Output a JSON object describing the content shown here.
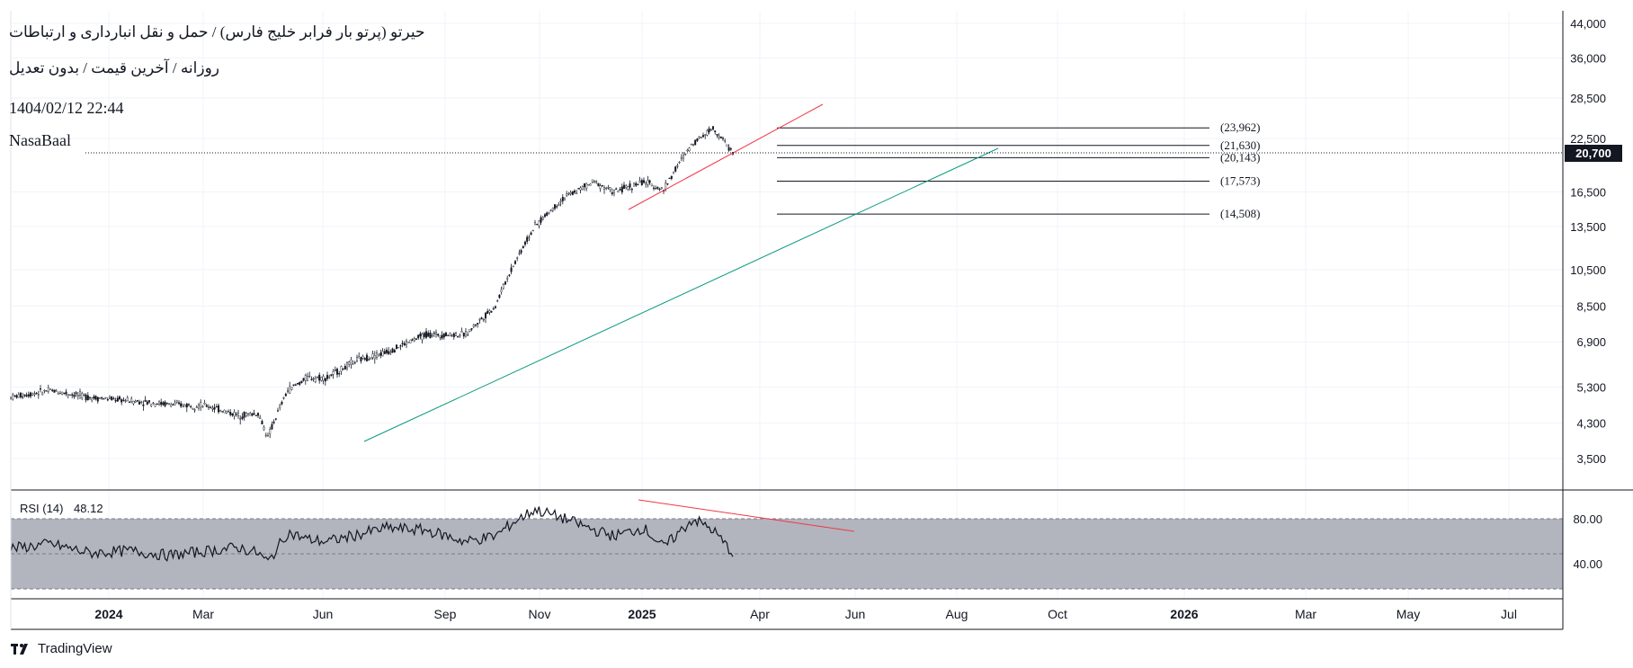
{
  "header": {
    "title": "حیرتو (پرتو بار فرابر خلیج فارس) / حمل و نقل انبارداری و ارتباطات",
    "subtitle": "روزانه / آخرین قیمت / بدون تعدیل",
    "datetime": "1404/02/12 22:44",
    "author": "NasaBaal"
  },
  "brand": {
    "name": "TradingView",
    "icon": "tradingview-logo-icon"
  },
  "colors": {
    "trend_upper": "#f23645",
    "trend_lower": "#089981",
    "candle": "#131722",
    "rsi_band": "#b2b5be"
  },
  "price_axis": {
    "scale": "log",
    "ticks": [
      "44,000",
      "36,000",
      "28,500",
      "22,500",
      "16,500",
      "13,500",
      "10,500",
      "8,500",
      "6,900",
      "5,300",
      "4,300",
      "3,500"
    ],
    "last_price": "20,700"
  },
  "time_axis": {
    "ticks": [
      {
        "label": "2024",
        "bold": true
      },
      {
        "label": "Mar",
        "bold": false
      },
      {
        "label": "Jun",
        "bold": false
      },
      {
        "label": "Sep",
        "bold": false
      },
      {
        "label": "Nov",
        "bold": false
      },
      {
        "label": "2025",
        "bold": true
      },
      {
        "label": "Apr",
        "bold": false
      },
      {
        "label": "Jun",
        "bold": false
      },
      {
        "label": "Aug",
        "bold": false
      },
      {
        "label": "Oct",
        "bold": false
      },
      {
        "label": "2026",
        "bold": true
      },
      {
        "label": "Mar",
        "bold": false
      },
      {
        "label": "May",
        "bold": false
      },
      {
        "label": "Jul",
        "bold": false
      }
    ]
  },
  "rsi": {
    "label": "RSI (14)",
    "value": "48.12",
    "ticks": [
      "80.00",
      "40.00"
    ]
  },
  "chart_data": {
    "type": "candlestick",
    "x_start": "2023-11",
    "x_end": "2025-05",
    "price_path": [
      [
        0,
        5000
      ],
      [
        20,
        5200
      ],
      [
        40,
        5000
      ],
      [
        60,
        4900
      ],
      [
        80,
        4800
      ],
      [
        100,
        4750
      ],
      [
        115,
        4500
      ],
      [
        125,
        4550
      ],
      [
        130,
        3950
      ],
      [
        140,
        5200
      ],
      [
        150,
        5600
      ],
      [
        160,
        5600
      ],
      [
        175,
        6200
      ],
      [
        190,
        6500
      ],
      [
        210,
        7200
      ],
      [
        230,
        7200
      ],
      [
        245,
        8500
      ],
      [
        255,
        11000
      ],
      [
        265,
        13500
      ],
      [
        280,
        16000
      ],
      [
        295,
        17500
      ],
      [
        305,
        16500
      ],
      [
        320,
        17500
      ],
      [
        330,
        16700
      ],
      [
        345,
        22000
      ],
      [
        355,
        23962
      ],
      [
        365,
        20700
      ]
    ],
    "levels": [
      {
        "label": "(23,962)",
        "value": 23962
      },
      {
        "label": "(21,630)",
        "value": 21630
      },
      {
        "label": "(20,143)",
        "value": 20143
      },
      {
        "label": "(17,573)",
        "value": 17573
      },
      {
        "label": "(14,508)",
        "value": 14508
      }
    ],
    "trendlines": [
      {
        "color": "red",
        "from": [
          2025.0,
          15000
        ],
        "to": [
          2025.35,
          27500
        ]
      },
      {
        "color": "green",
        "from": [
          2024.45,
          3950
        ],
        "to": [
          2025.6,
          21630
        ]
      }
    ],
    "rsi_path": [
      [
        0,
        54
      ],
      [
        20,
        58
      ],
      [
        40,
        50
      ],
      [
        60,
        52
      ],
      [
        80,
        48
      ],
      [
        100,
        52
      ],
      [
        115,
        55
      ],
      [
        125,
        50
      ],
      [
        130,
        42
      ],
      [
        140,
        68
      ],
      [
        150,
        62
      ],
      [
        160,
        60
      ],
      [
        175,
        66
      ],
      [
        190,
        72
      ],
      [
        210,
        70
      ],
      [
        230,
        60
      ],
      [
        245,
        65
      ],
      [
        255,
        78
      ],
      [
        265,
        88
      ],
      [
        280,
        80
      ],
      [
        295,
        70
      ],
      [
        305,
        65
      ],
      [
        320,
        72
      ],
      [
        330,
        55
      ],
      [
        345,
        80
      ],
      [
        355,
        70
      ],
      [
        365,
        50
      ]
    ],
    "rsi_trendline": {
      "from": [
        265,
        90
      ],
      "to": [
        380,
        72
      ]
    }
  }
}
